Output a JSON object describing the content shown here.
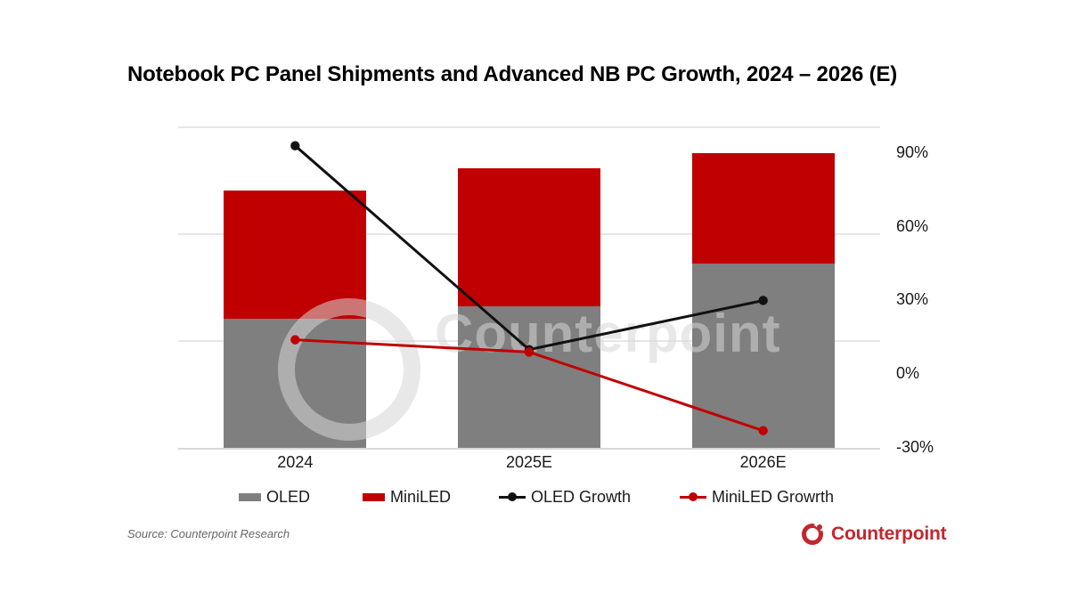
{
  "title": "Notebook PC Panel Shipments and Advanced NB PC Growth, 2024 – 2026 (E)",
  "source": "Source: Counterpoint Research",
  "watermark": "Counterpoint",
  "brand": {
    "name": "Counterpoint",
    "logo_color": "#C2272D"
  },
  "legend": {
    "position": "bottom",
    "items": [
      {
        "label": "OLED",
        "type": "bar",
        "color": "#7F7F7F"
      },
      {
        "label": "MiniLED",
        "type": "bar",
        "color": "#C00000"
      },
      {
        "label": "OLED Growth",
        "type": "line",
        "color": "#111111"
      },
      {
        "label": "MiniLED Growrth",
        "type": "line",
        "color": "#C00000"
      }
    ]
  },
  "chart_data": {
    "type": "combo: stacked bar + line",
    "categories": [
      "2024",
      "2025E",
      "2026E"
    ],
    "bar_axis": {
      "side": "left",
      "labels_visible": false,
      "max": 3.07,
      "gridlines": [
        1,
        2,
        3
      ],
      "note": "Left axis is unlabeled; bar values are relative axis units estimated from gridline spacing."
    },
    "bar_series": [
      {
        "name": "OLED",
        "color": "#7F7F7F",
        "values": [
          1.21,
          1.33,
          1.73
        ]
      },
      {
        "name": "MiniLED",
        "color": "#C00000",
        "values": [
          1.2,
          1.29,
          1.03
        ]
      }
    ],
    "line_axis": {
      "side": "right",
      "min": -30,
      "max": 103.4,
      "ticks": [
        90,
        60,
        30,
        0,
        -30
      ],
      "tick_labels": [
        "90%",
        "60%",
        "30%",
        "0%",
        "-30%"
      ]
    },
    "line_series": [
      {
        "name": "OLED Growth",
        "color": "#111111",
        "values_pct": [
          93,
          10,
          30
        ]
      },
      {
        "name": "MiniLED Growrth",
        "color": "#C00000",
        "values_pct": [
          14,
          9,
          -23
        ]
      }
    ],
    "grid": "horizontal only",
    "colors": {
      "gridline": "#E6E6E6",
      "axis_line": "#D8D8D8"
    }
  }
}
